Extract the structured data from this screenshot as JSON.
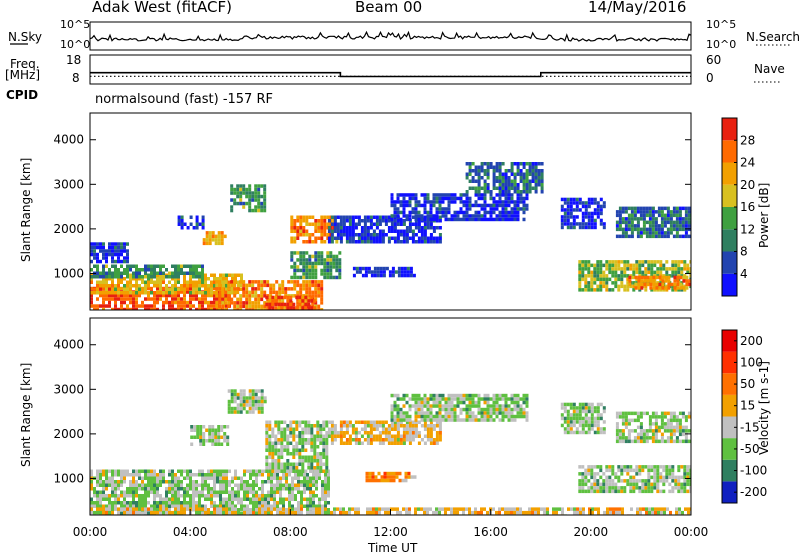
{
  "header": {
    "station": "Adak West (fitACF)",
    "beam": "Beam 00",
    "date": "14/May/2016"
  },
  "left_labels": {
    "nsky": "N.Sky",
    "freq": "Freq.",
    "freq_unit": "[MHz]",
    "cpid": "CPID"
  },
  "right_labels": {
    "nsearch": "N.Search",
    "nave": "Nave"
  },
  "top_ticks": {
    "noise_high": "10^5",
    "noise_low": "10^0",
    "freq_high": "18",
    "freq_low": "8",
    "nave_high": "60",
    "nave_low": "0"
  },
  "cpid_text": "normalsound (fast) -157 RF",
  "chart_data": [
    {
      "type": "heatmap",
      "name": "power",
      "ylabel": "Slant Range [km]",
      "yticks": [
        "1000",
        "2000",
        "3000",
        "4000"
      ],
      "ylim": [
        180,
        4600
      ],
      "xlim": [
        0,
        24
      ],
      "colorbar": {
        "label": "Power [dB]",
        "ticks": [
          "4",
          "8",
          "12",
          "16",
          "20",
          "24",
          "28"
        ],
        "colors": [
          "#1010ff",
          "#2244b0",
          "#2f7f60",
          "#3fa040",
          "#d8c020",
          "#f2a000",
          "#ff6a00",
          "#e82010"
        ]
      },
      "regions": [
        {
          "t0": 0.0,
          "t1": 5.6,
          "r0": 200,
          "r1": 700,
          "level": 7
        },
        {
          "t0": 0.0,
          "t1": 6.0,
          "r0": 600,
          "r1": 1000,
          "level": 5
        },
        {
          "t0": 0.0,
          "t1": 4.5,
          "r0": 950,
          "r1": 1200,
          "level": 3
        },
        {
          "t0": 0.0,
          "t1": 1.5,
          "r0": 1250,
          "r1": 1700,
          "level": 1
        },
        {
          "t0": 5.0,
          "t1": 9.2,
          "r0": 200,
          "r1": 850,
          "level": 6
        },
        {
          "t0": 7.0,
          "t1": 9.0,
          "r0": 200,
          "r1": 500,
          "level": 7
        },
        {
          "t0": 8.0,
          "t1": 9.8,
          "r0": 1700,
          "r1": 2300,
          "level": 6
        },
        {
          "t0": 4.5,
          "t1": 5.4,
          "r0": 1650,
          "r1": 1950,
          "level": 5
        },
        {
          "t0": 5.6,
          "t1": 7.0,
          "r0": 2450,
          "r1": 3000,
          "level": 3
        },
        {
          "t0": 3.5,
          "t1": 4.5,
          "r0": 2000,
          "r1": 2300,
          "level": 1
        },
        {
          "t0": 9.5,
          "t1": 14.0,
          "r0": 1700,
          "r1": 2300,
          "level": 1
        },
        {
          "t0": 12.0,
          "t1": 17.5,
          "r0": 2200,
          "r1": 2800,
          "level": 1
        },
        {
          "t0": 10.5,
          "t1": 13.0,
          "r0": 950,
          "r1": 1150,
          "level": 1
        },
        {
          "t0": 8.0,
          "t1": 10.0,
          "r0": 900,
          "r1": 1500,
          "level": 3
        },
        {
          "t0": 19.5,
          "t1": 24.0,
          "r0": 600,
          "r1": 1300,
          "level": 4
        },
        {
          "t0": 21.5,
          "t1": 24.0,
          "r0": 700,
          "r1": 950,
          "level": 6
        },
        {
          "t0": 18.8,
          "t1": 20.5,
          "r0": 2000,
          "r1": 2700,
          "level": 1
        },
        {
          "t0": 21.0,
          "t1": 24.0,
          "r0": 1800,
          "r1": 2500,
          "level": 2
        },
        {
          "t0": 15.0,
          "t1": 18.0,
          "r0": 2800,
          "r1": 3500,
          "level": 2
        }
      ]
    },
    {
      "type": "heatmap",
      "name": "velocity",
      "ylabel": "Slant Range [km]",
      "yticks": [
        "1000",
        "2000",
        "3000",
        "4000"
      ],
      "ylim": [
        180,
        4600
      ],
      "xlim": [
        0,
        24
      ],
      "xticks": [
        "00:00",
        "04:00",
        "08:00",
        "12:00",
        "16:00",
        "20:00",
        "00:00"
      ],
      "xlabel": "Time UT",
      "colorbar": {
        "label": "Velocity [m s-1]",
        "ticks": [
          "200",
          "100",
          "50",
          "15",
          "-15",
          "-50",
          "-100",
          "-200"
        ],
        "colors": [
          "#1020c0",
          "#2f7f60",
          "#5fc040",
          "#c0c0c0",
          "#f2a000",
          "#ff7000",
          "#ff3000",
          "#e80000"
        ]
      },
      "regions": [
        {
          "t0": 0.0,
          "t1": 9.5,
          "r0": 200,
          "r1": 1200,
          "level": 3
        },
        {
          "t0": 7.0,
          "t1": 9.5,
          "r0": 1200,
          "r1": 2300,
          "level": 3
        },
        {
          "t0": 4.0,
          "t1": 5.5,
          "r0": 1800,
          "r1": 2200,
          "level": 3
        },
        {
          "t0": 5.5,
          "t1": 7.0,
          "r0": 2500,
          "r1": 3000,
          "level": 3
        },
        {
          "t0": 9.5,
          "t1": 14.0,
          "r0": 1800,
          "r1": 2300,
          "level": 4
        },
        {
          "t0": 11.0,
          "t1": 13.0,
          "r0": 950,
          "r1": 1150,
          "level": 5
        },
        {
          "t0": 12.0,
          "t1": 17.5,
          "r0": 2300,
          "r1": 2900,
          "level": 3
        },
        {
          "t0": 19.5,
          "t1": 24.0,
          "r0": 700,
          "r1": 1300,
          "level": 3
        },
        {
          "t0": 21.0,
          "t1": 24.0,
          "r0": 1800,
          "r1": 2500,
          "level": 3
        },
        {
          "t0": 18.8,
          "t1": 20.5,
          "r0": 2000,
          "r1": 2700,
          "level": 3
        },
        {
          "t0": 0.0,
          "t1": 24.0,
          "r0": 180,
          "r1": 350,
          "level": 4
        }
      ]
    }
  ],
  "top_series": {
    "frequency_mhz": {
      "segments": [
        {
          "t0": 0.0,
          "t1": 10.0,
          "value": 11.8
        },
        {
          "t0": 10.0,
          "t1": 18.0,
          "value": 10.4
        },
        {
          "t0": 18.0,
          "t1": 24.0,
          "value": 11.8
        }
      ],
      "range": [
        8,
        18
      ]
    },
    "nave": {
      "segments": [
        {
          "t0": 0.0,
          "t1": 24.0,
          "value": 15
        }
      ],
      "range": [
        0,
        60
      ]
    }
  }
}
